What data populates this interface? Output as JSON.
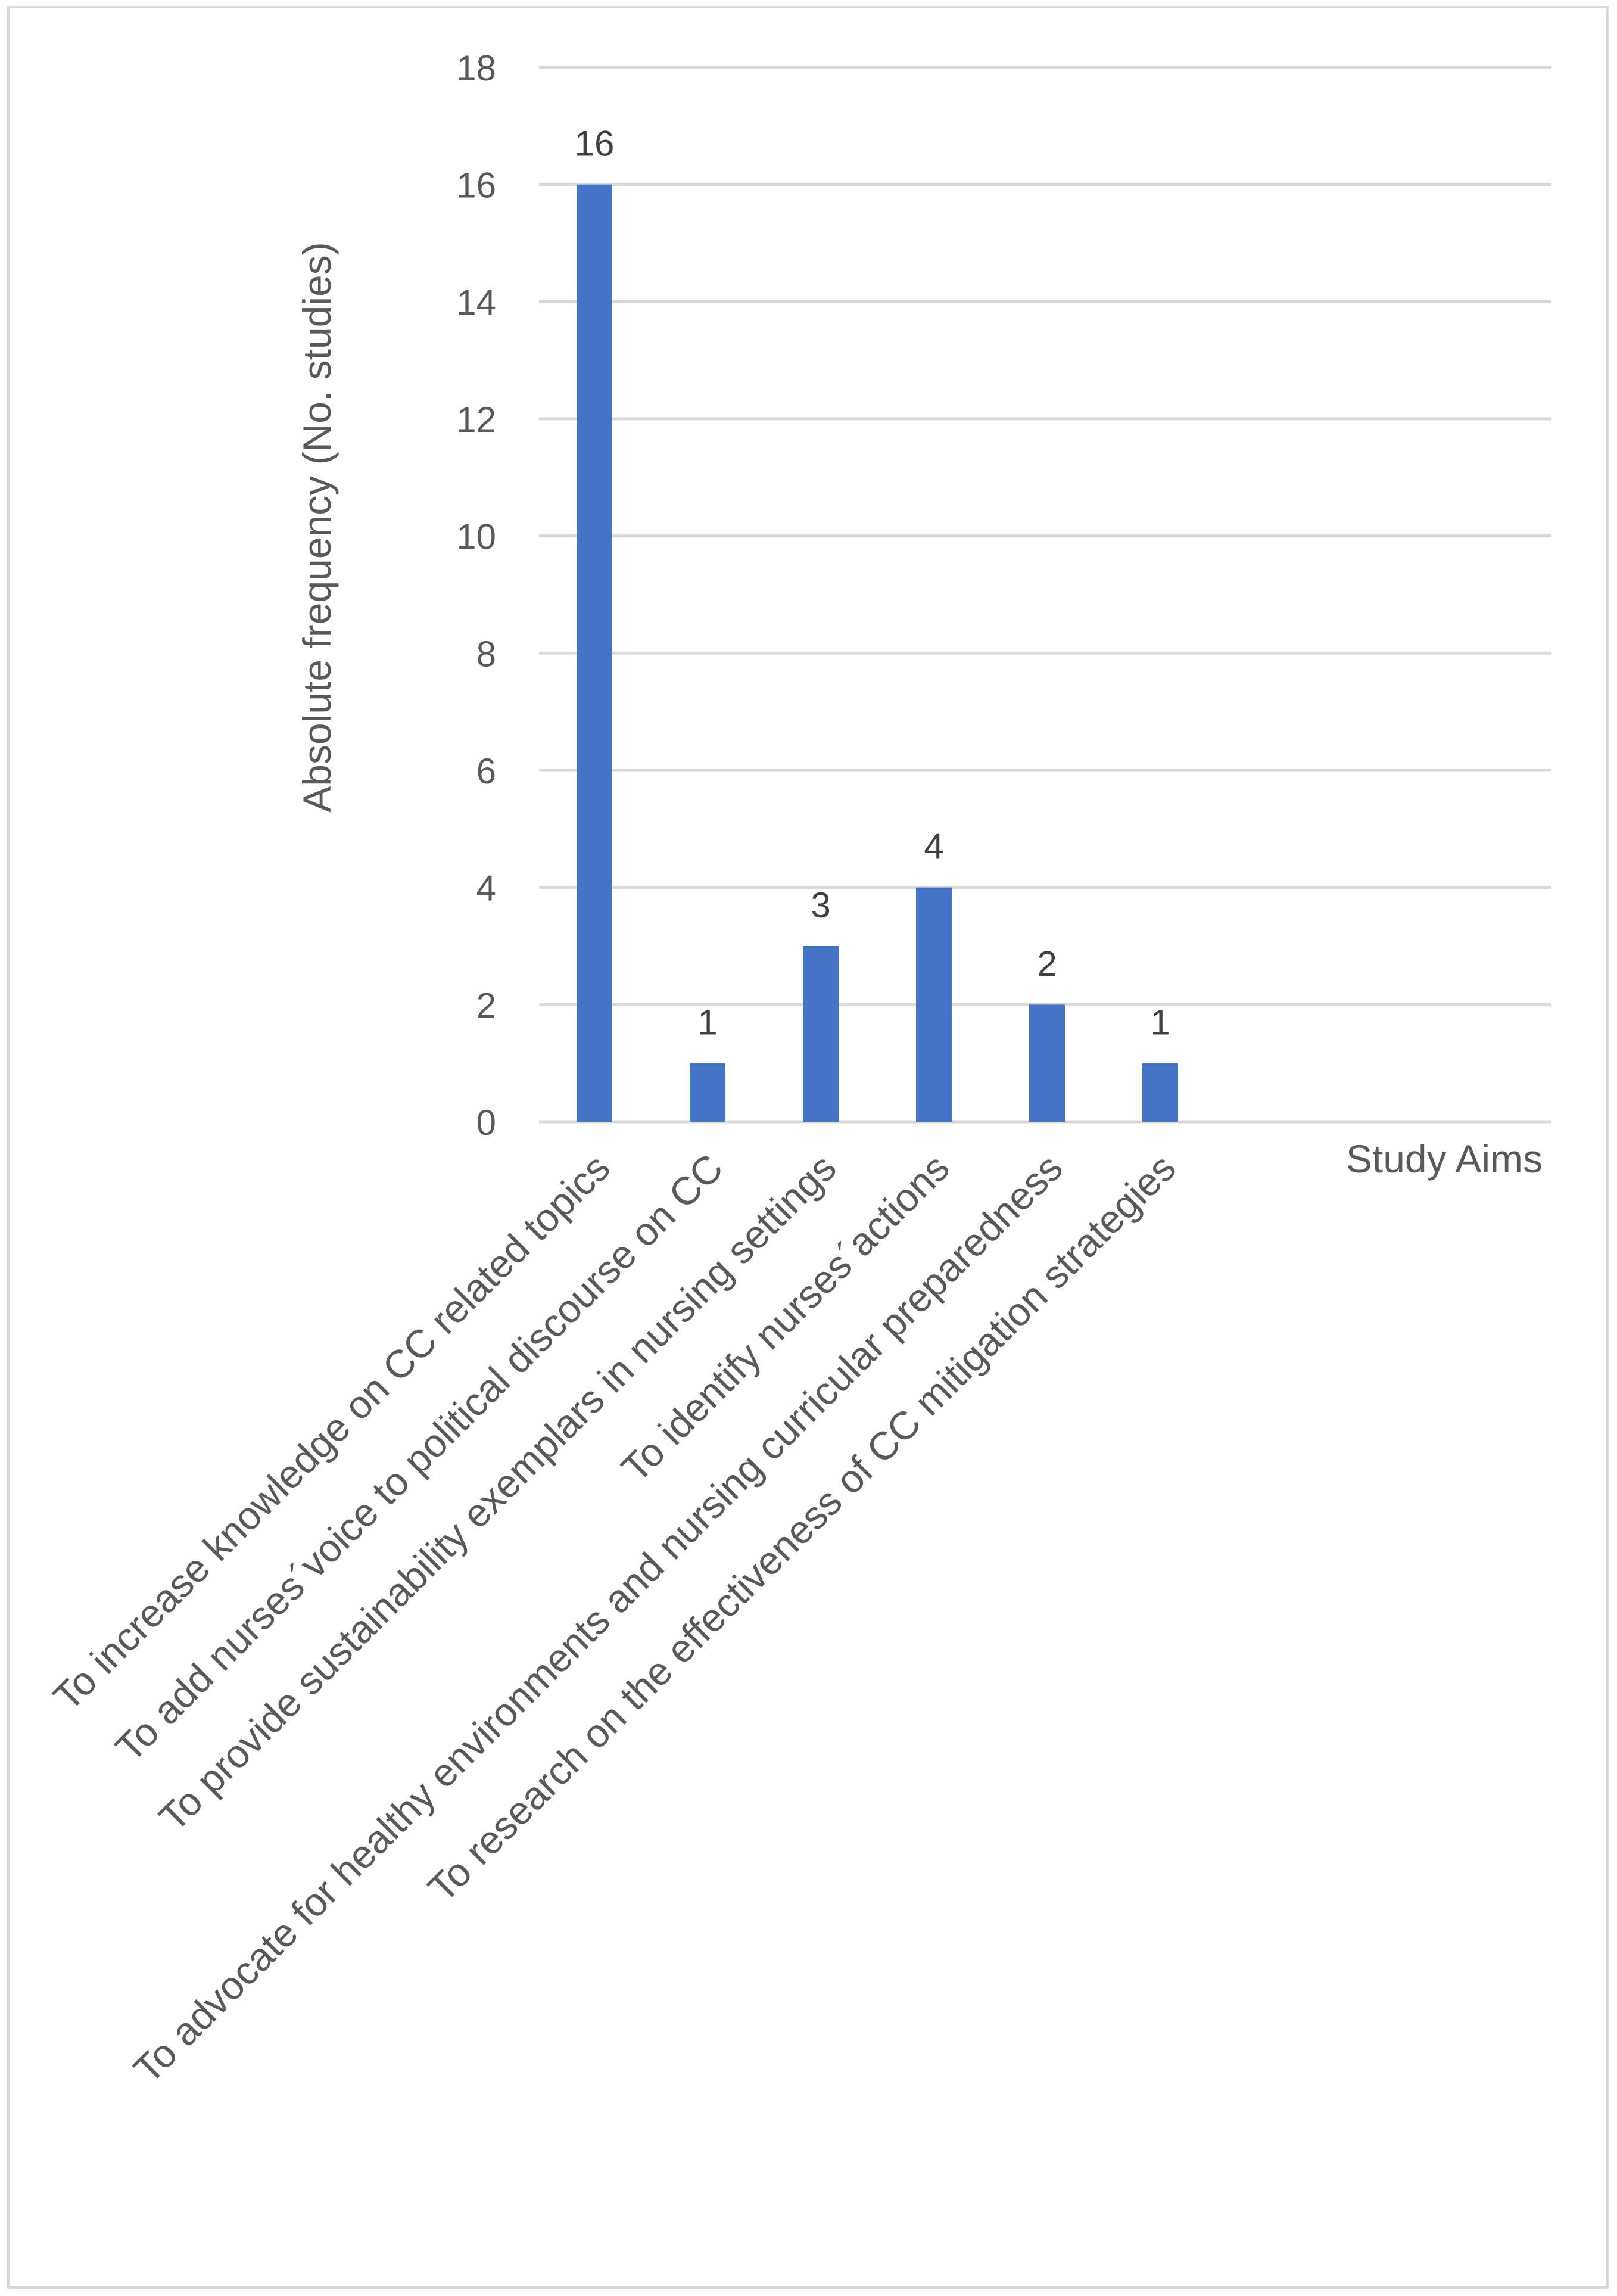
{
  "chart_data": {
    "type": "bar",
    "categories": [
      "To increase knowledge on CC related topics",
      "To add nurses´voice to political discourse on CC",
      "To provide sustainability exemplars in nursing settings",
      "To identify nurses´actions",
      "To advocate for healthy environments and nursing curricular preparedness",
      "To research on the effectiveness of CC mitigation strategies"
    ],
    "values": [
      16,
      1,
      3,
      4,
      2,
      1
    ],
    "data_labels": [
      "16",
      "1",
      "3",
      "4",
      "2",
      "1"
    ],
    "title": "",
    "xlabel": "Study Aims",
    "ylabel": "Absolute frequency (No. studies)",
    "ylim": [
      0,
      18
    ],
    "yticks": [
      0,
      2,
      4,
      6,
      8,
      10,
      12,
      14,
      16,
      18
    ],
    "ytick_labels": [
      "0",
      "2",
      "4",
      "6",
      "8",
      "10",
      "12",
      "14",
      "16",
      "18"
    ],
    "grid": "horizontal",
    "legend": "none",
    "colors": {
      "bar": "#4472c4",
      "gridline": "#d9d9d9",
      "axis_text": "#595959",
      "data_label_text": "#404040",
      "frame": "#d9d9d9"
    }
  }
}
